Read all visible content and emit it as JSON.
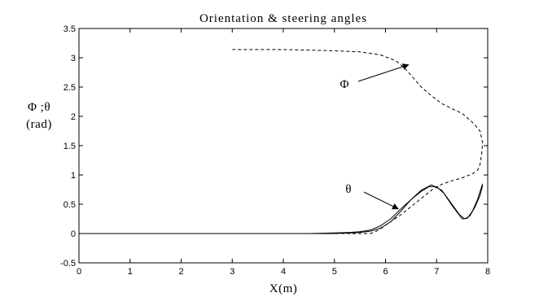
{
  "chart_data": {
    "type": "line",
    "title": "Orientation & steering angles",
    "xlabel": "X(m)",
    "ylabel_line1": "Φ ;θ",
    "ylabel_line2": "(rad)",
    "xlim": [
      0,
      8
    ],
    "ylim": [
      -0.5,
      3.5
    ],
    "xticks": [
      "0",
      "1",
      "2",
      "3",
      "4",
      "5",
      "6",
      "7",
      "8"
    ],
    "yticks": [
      "-0.5",
      "0",
      "0.5",
      "1",
      "1.5",
      "2",
      "2.5",
      "3",
      "3.5"
    ],
    "grid": false,
    "annotations": [
      {
        "text": "Φ",
        "target": [
          6.45,
          2.88
        ]
      },
      {
        "text": "θ",
        "target": [
          6.25,
          0.42
        ]
      }
    ],
    "series": [
      {
        "style": "dashed",
        "x": [
          3.0,
          3.5,
          4.0,
          4.5,
          5.0,
          5.5,
          5.9,
          6.2,
          6.4,
          6.55,
          6.7,
          6.9,
          7.1,
          7.3,
          7.5,
          7.7,
          7.85,
          7.9,
          7.88,
          7.85,
          7.8,
          7.7,
          7.5,
          7.3,
          7.1,
          6.9,
          6.7,
          6.5,
          6.3,
          6.15,
          6.0,
          5.9,
          5.8,
          5.7
        ],
        "y": [
          3.14,
          3.14,
          3.14,
          3.13,
          3.12,
          3.1,
          3.05,
          2.95,
          2.8,
          2.65,
          2.5,
          2.35,
          2.22,
          2.13,
          2.05,
          1.9,
          1.75,
          1.55,
          1.35,
          1.18,
          1.08,
          1.02,
          0.95,
          0.9,
          0.84,
          0.74,
          0.6,
          0.46,
          0.32,
          0.23,
          0.14,
          0.08,
          0.03,
          0.0
        ]
      },
      {
        "style": "dashed",
        "x": [
          0.0,
          1.0,
          2.0,
          3.0,
          4.0,
          5.0,
          5.5,
          5.7
        ],
        "y": [
          0.0,
          0.0,
          0.0,
          0.0,
          0.0,
          0.0,
          0.0,
          0.0
        ]
      },
      {
        "style": "solid",
        "x": [
          0.0,
          1.0,
          2.0,
          3.0,
          4.0,
          4.5,
          5.0,
          5.3,
          5.5,
          5.7,
          5.9,
          6.1,
          6.3,
          6.5,
          6.7,
          6.85,
          7.0,
          7.15,
          7.3,
          7.45,
          7.55,
          7.65,
          7.75,
          7.85,
          7.9
        ],
        "y": [
          0.0,
          0.0,
          0.0,
          0.0,
          0.0,
          0.0,
          0.01,
          0.02,
          0.03,
          0.06,
          0.13,
          0.25,
          0.42,
          0.58,
          0.72,
          0.8,
          0.8,
          0.68,
          0.5,
          0.32,
          0.25,
          0.3,
          0.45,
          0.65,
          0.82
        ]
      },
      {
        "style": "solid",
        "x": [
          0.0,
          1.0,
          2.0,
          3.0,
          4.0,
          4.5,
          5.0,
          5.3,
          5.5,
          5.7,
          5.9,
          6.1,
          6.3,
          6.5,
          6.7,
          6.9,
          7.1,
          7.3,
          7.5,
          7.6,
          7.7,
          7.8,
          7.9
        ],
        "y": [
          0.0,
          0.0,
          0.0,
          0.0,
          0.0,
          0.0,
          0.0,
          0.01,
          0.02,
          0.04,
          0.09,
          0.2,
          0.38,
          0.58,
          0.74,
          0.83,
          0.74,
          0.48,
          0.25,
          0.26,
          0.38,
          0.58,
          0.85
        ]
      }
    ]
  }
}
